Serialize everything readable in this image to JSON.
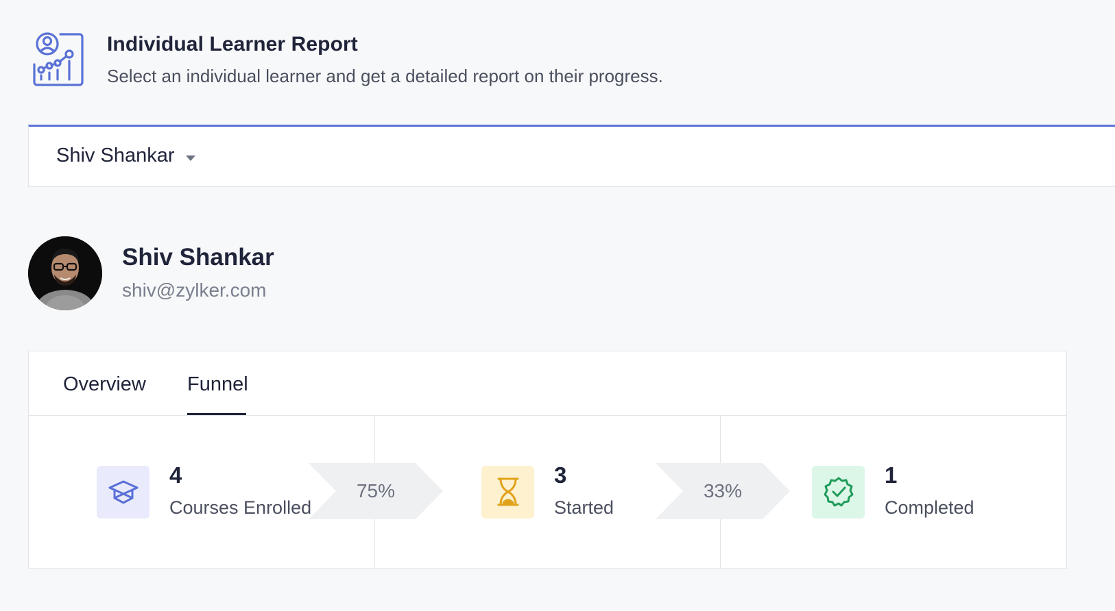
{
  "header": {
    "icon": "learner-report-icon",
    "title": "Individual Learner Report",
    "subtitle": "Select an individual learner and get a detailed report on their progress."
  },
  "selector": {
    "selected": "Shiv Shankar",
    "icon": "caret-down-icon"
  },
  "profile": {
    "name": "Shiv Shankar",
    "email": "shiv@zylker.com"
  },
  "tabs": [
    {
      "label": "Overview",
      "active": false
    },
    {
      "label": "Funnel",
      "active": true
    }
  ],
  "funnel": {
    "stages": [
      {
        "value": "4",
        "label": "Courses Enrolled",
        "icon": "graduation-cap-icon",
        "color": "#5a6fd6",
        "bg": "#e9ebfc"
      },
      {
        "value": "3",
        "label": "Started",
        "icon": "hourglass-icon",
        "color": "#e0a21a",
        "bg": "#fdf1cf"
      },
      {
        "value": "1",
        "label": "Completed",
        "icon": "check-badge-icon",
        "color": "#1f9a5a",
        "bg": "#dcf7e8"
      }
    ],
    "conversions": [
      "75%",
      "33%"
    ]
  },
  "colors": {
    "accent": "#5a72d6",
    "text": "#20243a",
    "muted": "#7a7f8e",
    "arrow": "#eff0f2"
  }
}
